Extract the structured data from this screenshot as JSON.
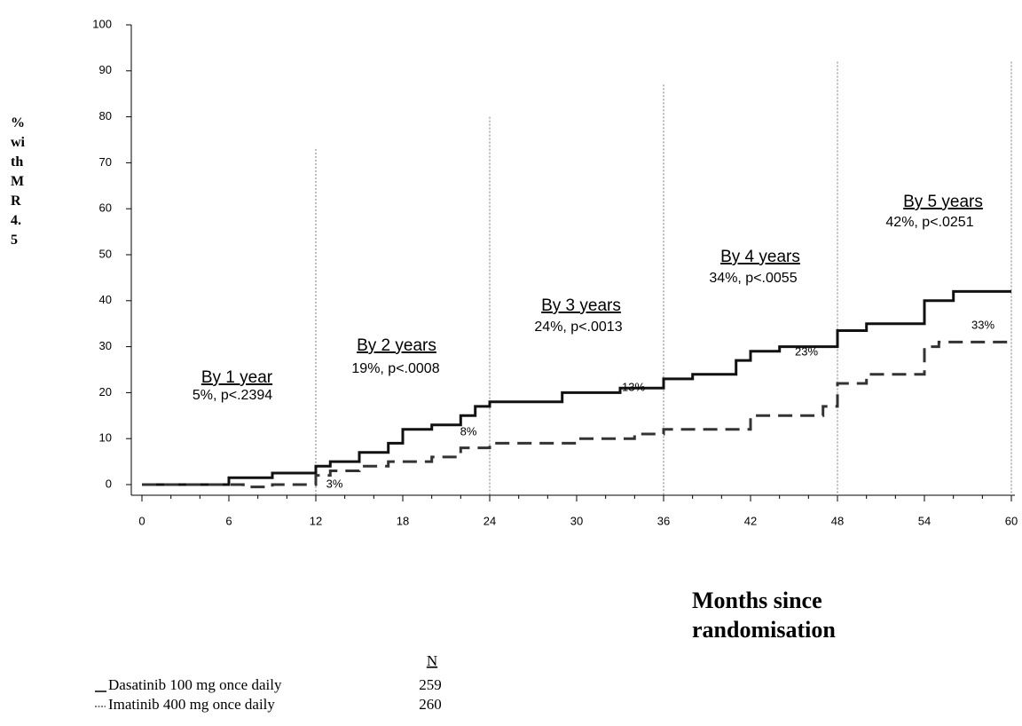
{
  "chart_data": {
    "type": "line",
    "y_label": "% with MR 4.5",
    "x_label": "Months since randomisation",
    "xlim": [
      0,
      60
    ],
    "xticks": [
      0,
      6,
      12,
      18,
      24,
      30,
      36,
      42,
      48,
      54,
      60
    ],
    "ylim": [
      0,
      100
    ],
    "yticks": [
      0,
      10,
      20,
      30,
      40,
      50,
      60,
      70,
      80,
      90,
      100
    ],
    "n_header": "N",
    "series": [
      {
        "name": "Dasatinib 100 mg once daily",
        "n": 259,
        "color": "#111111",
        "dash": false,
        "x": [
          0,
          6,
          6,
          9,
          9,
          12,
          12,
          13,
          13,
          15,
          15,
          17,
          17,
          18,
          18,
          20,
          20,
          22,
          22,
          23,
          23,
          24,
          24,
          29,
          29,
          33,
          33,
          36,
          36,
          38,
          38,
          41,
          41,
          42,
          42,
          44,
          44,
          48,
          48,
          50,
          50,
          54,
          54,
          56,
          56,
          60
        ],
        "values": [
          0,
          0,
          1.5,
          1.5,
          2.5,
          2.5,
          4,
          4,
          5,
          5,
          7,
          7,
          9,
          9,
          12,
          12,
          13,
          13,
          15,
          15,
          17,
          17,
          18,
          18,
          20,
          20,
          21,
          21,
          23,
          23,
          24,
          24,
          27,
          27,
          29,
          29,
          30,
          30,
          33.5,
          33.5,
          35,
          35,
          40,
          40,
          42,
          42
        ]
      },
      {
        "name": "Imatinib 400 mg once daily",
        "n": 260,
        "color": "#333333",
        "dash": true,
        "x": [
          0,
          7,
          7,
          9,
          9,
          12,
          12,
          13,
          13,
          15,
          15,
          17,
          17,
          20,
          20,
          22,
          22,
          24,
          24,
          30,
          30,
          34,
          34,
          36,
          36,
          42,
          42,
          47,
          47,
          48,
          48,
          50,
          50,
          54,
          54,
          55,
          55,
          60
        ],
        "values": [
          0,
          0,
          -0.5,
          -0.5,
          0,
          0,
          2,
          2,
          3,
          3,
          4,
          4,
          5,
          5,
          6,
          6,
          8,
          8,
          9,
          9,
          10,
          10,
          11,
          11,
          12,
          12,
          15,
          15,
          17,
          17,
          22,
          22,
          24,
          24,
          30,
          30,
          31,
          31
        ]
      }
    ],
    "annotations": [
      {
        "x": 12,
        "line_top": 73,
        "label": "By 1 year",
        "text": "5%, p<.2394"
      },
      {
        "x": 24,
        "line_top": 80,
        "label": "By 2 years",
        "text": "19%, p<.0008"
      },
      {
        "x": 36,
        "line_top": 87,
        "label": "By 3 years",
        "text": "24%, p<.0013"
      },
      {
        "x": 48,
        "line_top": 92,
        "label": "By 4 years",
        "text": "34%, p<.0055"
      },
      {
        "x": 60,
        "line_top": 92,
        "label": "By 5 years",
        "text": "42%, p<.0251"
      }
    ],
    "point_labels": [
      {
        "x": 12,
        "value": 3,
        "label": "3%"
      },
      {
        "x": 22,
        "value": 8,
        "label": "8%"
      },
      {
        "x": 34,
        "value": 13,
        "label": "13%"
      },
      {
        "x": 46,
        "value": 23,
        "label": "23%"
      },
      {
        "x": 58,
        "value": 33,
        "label": "33%"
      }
    ]
  }
}
